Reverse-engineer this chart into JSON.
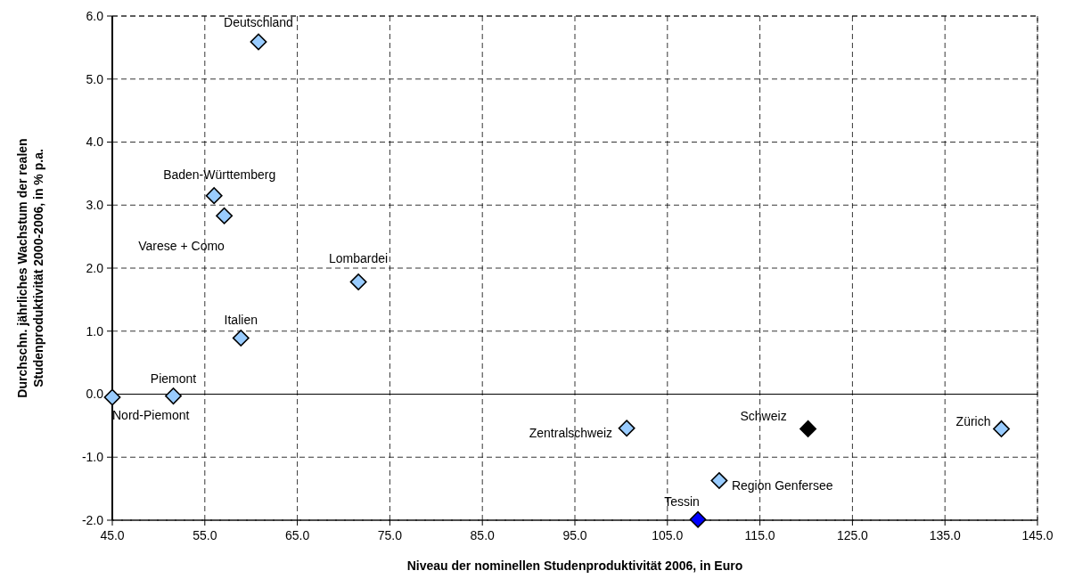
{
  "chart_data": {
    "type": "scatter",
    "xlabel": "Niveau der nominellen Studenproduktivität 2006, in Euro",
    "ylabel": "Durchschn. jährliches Wachstum der realen\nStudenproduktivität 2000-2006, in % p.a.",
    "series": [
      {
        "x": [
          45.0,
          51.6,
          58.9,
          56.0,
          57.1,
          60.8,
          71.6,
          100.6,
          120.2,
          141.1,
          110.6,
          108.3
        ],
        "values": [
          -0.05,
          -0.03,
          0.89,
          3.15,
          2.83,
          5.59,
          1.78,
          -0.54,
          -0.55,
          -0.55,
          -1.37,
          -1.99
        ],
        "colors": [
          "#99ccff",
          "#99ccff",
          "#99ccff",
          "#99ccff",
          "#99ccff",
          "#99ccff",
          "#99ccff",
          "#99ccff",
          "#000000",
          "#99ccff",
          "#99ccff",
          "#0000ff"
        ]
      }
    ],
    "annotations": [
      {
        "text": "Nord-Piemont",
        "x": 45.0,
        "y": -0.05
      },
      {
        "text": "Piemont",
        "x": 51.6,
        "y": -0.03
      },
      {
        "text": "Italien",
        "x": 58.9,
        "y": 0.89
      },
      {
        "text": "Baden-Württemberg",
        "x": 56.0,
        "y": 3.15
      },
      {
        "text": "Varese + Como",
        "x": 57.1,
        "y": 2.83
      },
      {
        "text": "Deutschland",
        "x": 60.8,
        "y": 5.59
      },
      {
        "text": "Lombardei",
        "x": 71.6,
        "y": 1.78
      },
      {
        "text": "Zentralschweiz",
        "x": 100.6,
        "y": -0.54
      },
      {
        "text": "Schweiz",
        "x": 120.2,
        "y": -0.55
      },
      {
        "text": "Zürich",
        "x": 141.1,
        "y": -0.55
      },
      {
        "text": "Region Genfersee",
        "x": 110.6,
        "y": -1.37
      },
      {
        "text": "Tessin",
        "x": 108.3,
        "y": -1.99
      }
    ],
    "xlim": [
      45,
      145
    ],
    "xticks": [
      {
        "value": 45,
        "label": "45.0"
      },
      {
        "value": 55,
        "label": "55.0"
      },
      {
        "value": 65,
        "label": "65.0"
      },
      {
        "value": 75,
        "label": "75.0"
      },
      {
        "value": 85,
        "label": "85.0"
      },
      {
        "value": 95,
        "label": "95.0"
      },
      {
        "value": 105,
        "label": "105.0"
      },
      {
        "value": 115,
        "label": "115.0"
      },
      {
        "value": 125,
        "label": "125.0"
      },
      {
        "value": 135,
        "label": "135.0"
      },
      {
        "value": 145,
        "label": "145.0"
      }
    ],
    "ylim": [
      -2,
      6
    ],
    "yticks": [
      {
        "value": -2,
        "label": "-2.0"
      },
      {
        "value": -1,
        "label": "-1.0"
      },
      {
        "value": 0,
        "label": "0.0"
      },
      {
        "value": 1,
        "label": "1.0"
      },
      {
        "value": 2,
        "label": "2.0"
      },
      {
        "value": 3,
        "label": "3.0"
      },
      {
        "value": 4,
        "label": "4.0"
      },
      {
        "value": 5,
        "label": "5.0"
      },
      {
        "value": 6,
        "label": "6.0"
      }
    ],
    "ref_lines": [
      {
        "axis": "y",
        "value": 0,
        "color": "#000000"
      }
    ],
    "grid": true,
    "marker": "diamond"
  }
}
